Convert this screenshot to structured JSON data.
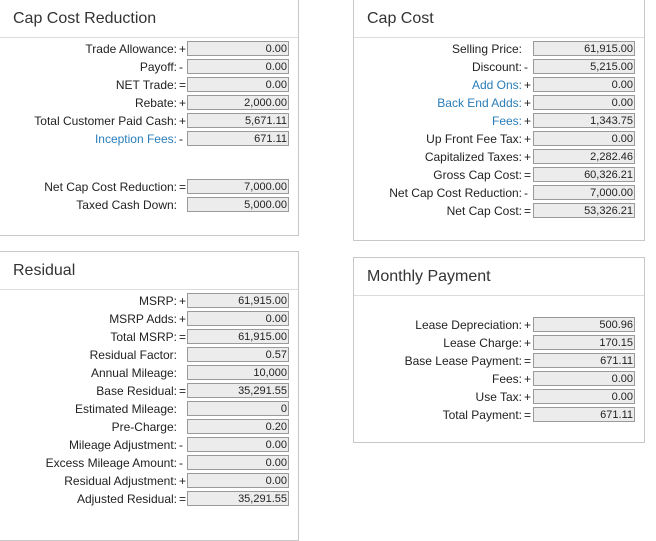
{
  "cap_cost_reduction": {
    "title": "Cap Cost Reduction",
    "rows": [
      {
        "label": "Trade Allowance:",
        "op": "+",
        "value": "0.00"
      },
      {
        "label": "Payoff:",
        "op": "-",
        "value": "0.00"
      },
      {
        "label": "NET Trade:",
        "op": "=",
        "value": "0.00"
      },
      {
        "label": "Rebate:",
        "op": "+",
        "value": "2,000.00"
      },
      {
        "label": "Total Customer Paid Cash:",
        "op": "+",
        "value": "5,671.11"
      },
      {
        "label": "Inception Fees:",
        "op": "-",
        "value": "671.11"
      }
    ],
    "net_rows": [
      {
        "label": "Net Cap Cost Reduction:",
        "op": "=",
        "value": "7,000.00"
      },
      {
        "label": "Taxed Cash Down:",
        "op": "",
        "value": "5,000.00"
      }
    ]
  },
  "cap_cost": {
    "title": "Cap Cost",
    "rows": [
      {
        "label": "Selling Price:",
        "op": "",
        "value": "61,915.00"
      },
      {
        "label": "Discount:",
        "op": "-",
        "value": "5,215.00"
      },
      {
        "label": "Add Ons:",
        "op": "+",
        "value": "0.00"
      },
      {
        "label": "Back End Adds:",
        "op": "+",
        "value": "0.00"
      },
      {
        "label": "Fees:",
        "op": "+",
        "value": "1,343.75"
      },
      {
        "label": "Up Front Fee Tax:",
        "op": "+",
        "value": "0.00"
      },
      {
        "label": "Capitalized Taxes:",
        "op": "+",
        "value": "2,282.46"
      },
      {
        "label": "Gross Cap Cost:",
        "op": "=",
        "value": "60,326.21"
      },
      {
        "label": "Net Cap Cost Reduction:",
        "op": "-",
        "value": "7,000.00"
      },
      {
        "label": "Net Cap Cost:",
        "op": "=",
        "value": "53,326.21"
      }
    ]
  },
  "residual": {
    "title": "Residual",
    "rows": [
      {
        "label": "MSRP:",
        "op": "+",
        "value": "61,915.00"
      },
      {
        "label": "MSRP Adds:",
        "op": "+",
        "value": "0.00"
      },
      {
        "label": "Total MSRP:",
        "op": "=",
        "value": "61,915.00"
      },
      {
        "label": "Residual Factor:",
        "op": "",
        "value": "0.57"
      },
      {
        "label": "Annual Mileage:",
        "op": "",
        "value": "10,000"
      },
      {
        "label": "Base Residual:",
        "op": "=",
        "value": "35,291.55"
      },
      {
        "label": "Estimated Mileage:",
        "op": "",
        "value": "0"
      },
      {
        "label": "Pre-Charge:",
        "op": "",
        "value": "0.20"
      },
      {
        "label": "Mileage Adjustment:",
        "op": "-",
        "value": "0.00"
      },
      {
        "label": "Excess Mileage Amount:",
        "op": "-",
        "value": "0.00"
      },
      {
        "label": "Residual Adjustment:",
        "op": "+",
        "value": "0.00"
      },
      {
        "label": "Adjusted Residual:",
        "op": "=",
        "value": "35,291.55"
      }
    ]
  },
  "monthly_payment": {
    "title": "Monthly Payment",
    "rows": [
      {
        "label": "Lease Depreciation:",
        "op": "+",
        "value": "500.96"
      },
      {
        "label": "Lease Charge:",
        "op": "+",
        "value": "170.15"
      },
      {
        "label": "Base Lease Payment:",
        "op": "=",
        "value": "671.11"
      },
      {
        "label": "Fees:",
        "op": "+",
        "value": "0.00"
      },
      {
        "label": "Use Tax:",
        "op": "+",
        "value": "0.00"
      },
      {
        "label": "Total Payment:",
        "op": "=",
        "value": "671.11"
      }
    ]
  },
  "colors": {
    "link": "#2a7db8",
    "field_bg": "#ececec",
    "field_border": "#9a9a9a",
    "panel_border": "#c8c8c8"
  }
}
